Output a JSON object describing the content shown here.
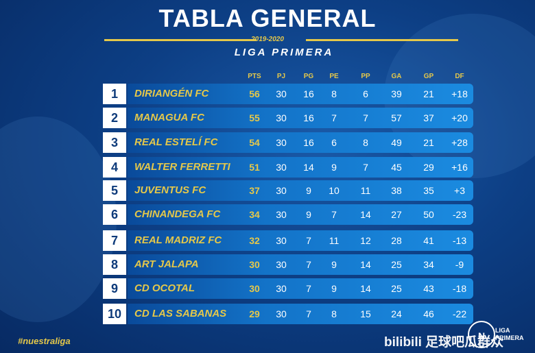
{
  "header": {
    "title": "TABLA GENERAL",
    "season": "2019-2020",
    "league": "LIGA PRIMERA"
  },
  "columns": [
    "PTS",
    "PJ",
    "PG",
    "PE",
    "PP",
    "GA",
    "GP",
    "DF"
  ],
  "standings": [
    {
      "pos": "1",
      "team": "DIRIANGÉN FC",
      "pts": "56",
      "pj": "30",
      "pg": "16",
      "pe": "8",
      "pp": "6",
      "ga": "39",
      "gp": "21",
      "df": "+18"
    },
    {
      "pos": "2",
      "team": "MANAGUA FC",
      "pts": "55",
      "pj": "30",
      "pg": "16",
      "pe": "7",
      "pp": "7",
      "ga": "57",
      "gp": "37",
      "df": "+20"
    },
    {
      "pos": "3",
      "team": "REAL ESTELÍ FC",
      "pts": "54",
      "pj": "30",
      "pg": "16",
      "pe": "6",
      "pp": "8",
      "ga": "49",
      "gp": "21",
      "df": "+28"
    },
    {
      "pos": "4",
      "team": "WALTER FERRETTI",
      "pts": "51",
      "pj": "30",
      "pg": "14",
      "pe": "9",
      "pp": "7",
      "ga": "45",
      "gp": "29",
      "df": "+16"
    },
    {
      "pos": "5",
      "team": "JUVENTUS FC",
      "pts": "37",
      "pj": "30",
      "pg": "9",
      "pe": "10",
      "pp": "11",
      "ga": "38",
      "gp": "35",
      "df": "+3"
    },
    {
      "pos": "6",
      "team": "CHINANDEGA FC",
      "pts": "34",
      "pj": "30",
      "pg": "9",
      "pe": "7",
      "pp": "14",
      "ga": "27",
      "gp": "50",
      "df": "-23"
    },
    {
      "pos": "7",
      "team": "REAL MADRIZ FC",
      "pts": "32",
      "pj": "30",
      "pg": "7",
      "pe": "11",
      "pp": "12",
      "ga": "28",
      "gp": "41",
      "df": "-13"
    },
    {
      "pos": "8",
      "team": "ART JALAPA",
      "pts": "30",
      "pj": "30",
      "pg": "7",
      "pe": "9",
      "pp": "14",
      "ga": "25",
      "gp": "34",
      "df": "-9"
    },
    {
      "pos": "9",
      "team": "CD OCOTAL",
      "pts": "30",
      "pj": "30",
      "pg": "7",
      "pe": "9",
      "pp": "14",
      "ga": "25",
      "gp": "43",
      "df": "-18"
    },
    {
      "pos": "10",
      "team": "CD LAS SABANAS",
      "pts": "29",
      "pj": "30",
      "pg": "7",
      "pe": "8",
      "pp": "15",
      "ga": "24",
      "gp": "46",
      "df": "-22"
    }
  ],
  "footer": {
    "hashtag": "#nuestraliga",
    "logo_mark": "N",
    "logo_line1": "LIGA",
    "logo_line2": "PRIMERA",
    "watermark": "bilibili 足球吧瓜群众"
  },
  "colors": {
    "accent": "#e5c84a",
    "background": "#0d3f85",
    "row_bar": "#1373c8"
  }
}
